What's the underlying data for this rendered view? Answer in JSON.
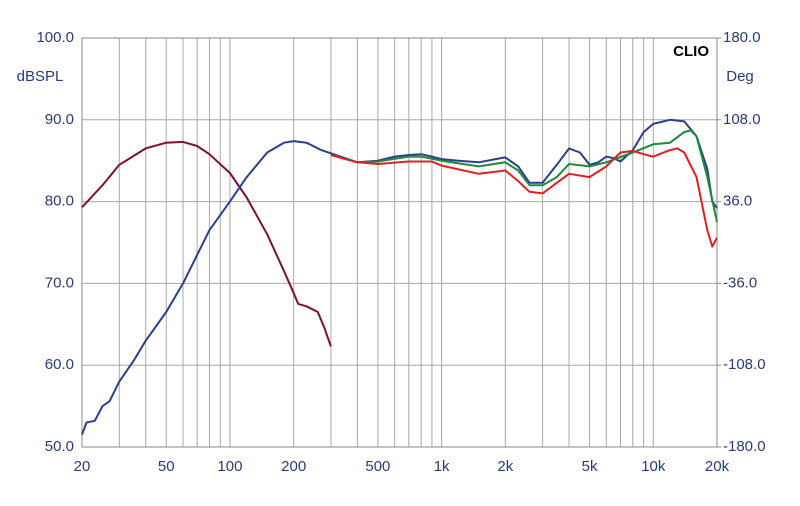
{
  "chart_data": {
    "type": "line",
    "title": "CLIO",
    "y_label": "dBSPL",
    "y2_label": "Deg",
    "xscale": "log",
    "grid": true,
    "xlim": [
      20,
      20000
    ],
    "ylim": [
      50,
      100
    ],
    "y2lim": [
      -180,
      180
    ],
    "xticks": [
      20,
      50,
      100,
      200,
      500,
      {
        "value": 1000,
        "label": "1k"
      },
      {
        "value": 2000,
        "label": "2k"
      },
      {
        "value": 5000,
        "label": "5k"
      },
      {
        "value": 10000,
        "label": "10k"
      },
      {
        "value": 20000,
        "label": "20k"
      }
    ],
    "xminor": [
      30,
      40,
      60,
      70,
      80,
      90,
      300,
      400,
      600,
      700,
      800,
      900,
      3000,
      4000,
      6000,
      7000,
      8000,
      9000
    ],
    "yticks": [
      {
        "value": 50,
        "label": "50.0"
      },
      {
        "value": 60,
        "label": "60.0"
      },
      {
        "value": 70,
        "label": "70.0"
      },
      {
        "value": 80,
        "label": "80.0"
      },
      {
        "value": 90,
        "label": "90.0"
      },
      {
        "value": 100,
        "label": "100.0"
      }
    ],
    "y2ticks": [
      {
        "value": -180,
        "label": "-180.0"
      },
      {
        "value": -108,
        "label": "-108.0"
      },
      {
        "value": -36,
        "label": "-36.0"
      },
      {
        "value": 36,
        "label": "36.0"
      },
      {
        "value": 108,
        "label": "108.0"
      },
      {
        "value": 180,
        "label": "180.0"
      }
    ],
    "series": [
      {
        "color": "#7a1235",
        "x": [
          20,
          25,
          30,
          40,
          50,
          60,
          70,
          80,
          100,
          120,
          150,
          180,
          200,
          210,
          230,
          260,
          280,
          300
        ],
        "values": [
          79.3,
          82,
          84.5,
          86.5,
          87.2,
          87.3,
          86.8,
          85.8,
          83.5,
          80.5,
          76,
          71.5,
          68.8,
          67.5,
          67.2,
          66.5,
          64.5,
          62.3
        ]
      },
      {
        "color": "#2a3f8f",
        "x": [
          20,
          21,
          23,
          25,
          27,
          30,
          35,
          40,
          50,
          60,
          70,
          80,
          100,
          120,
          150,
          180,
          200,
          230,
          270,
          300,
          350,
          400,
          500,
          600,
          700,
          800,
          900,
          1000,
          1200,
          1500,
          1800,
          2000,
          2300,
          2600,
          3000,
          3500,
          4000,
          4500,
          5000,
          5500,
          6000,
          6500,
          7000,
          8000,
          9000,
          10000,
          12000,
          14000,
          16000,
          18000,
          19000,
          20000
        ],
        "values": [
          51.5,
          53,
          53.2,
          55,
          55.6,
          58,
          60.5,
          63,
          66.5,
          70,
          73.5,
          76.5,
          80,
          83,
          86,
          87.2,
          87.4,
          87.2,
          86.3,
          85.9,
          85.3,
          84.8,
          85,
          85.5,
          85.7,
          85.8,
          85.5,
          85.2,
          85,
          84.8,
          85.2,
          85.4,
          84.3,
          82.3,
          82.3,
          84.5,
          86.5,
          86,
          84.5,
          84.8,
          85.5,
          85.3,
          84.9,
          86.3,
          88.5,
          89.5,
          90,
          89.8,
          88,
          84,
          80,
          79.2
        ]
      },
      {
        "color": "#1e8a3a",
        "x": [
          300,
          400,
          500,
          700,
          800,
          1000,
          1500,
          2000,
          2300,
          2600,
          3000,
          3500,
          4000,
          5000,
          6000,
          8000,
          10000,
          12000,
          14000,
          15000,
          16000,
          18000,
          20000
        ],
        "values": [
          85.7,
          84.8,
          84.9,
          85.5,
          85.5,
          85,
          84.3,
          84.8,
          83.8,
          82,
          82,
          83,
          84.6,
          84.3,
          84.8,
          86,
          87,
          87.2,
          88.5,
          88.7,
          88,
          83,
          77.5
        ]
      },
      {
        "color": "#e02020",
        "x": [
          300,
          400,
          500,
          700,
          900,
          1000,
          1500,
          2000,
          2300,
          2600,
          3000,
          3500,
          4000,
          5000,
          6000,
          7000,
          8000,
          9000,
          10000,
          12000,
          13000,
          14000,
          16000,
          18000,
          19000,
          20000
        ],
        "values": [
          85.7,
          84.8,
          84.6,
          84.9,
          84.9,
          84.4,
          83.4,
          83.8,
          82.5,
          81.2,
          81,
          82.3,
          83.4,
          83,
          84.3,
          86,
          86.2,
          85.8,
          85.5,
          86.3,
          86.5,
          86,
          83,
          76.5,
          74.5,
          75.6
        ]
      }
    ]
  }
}
